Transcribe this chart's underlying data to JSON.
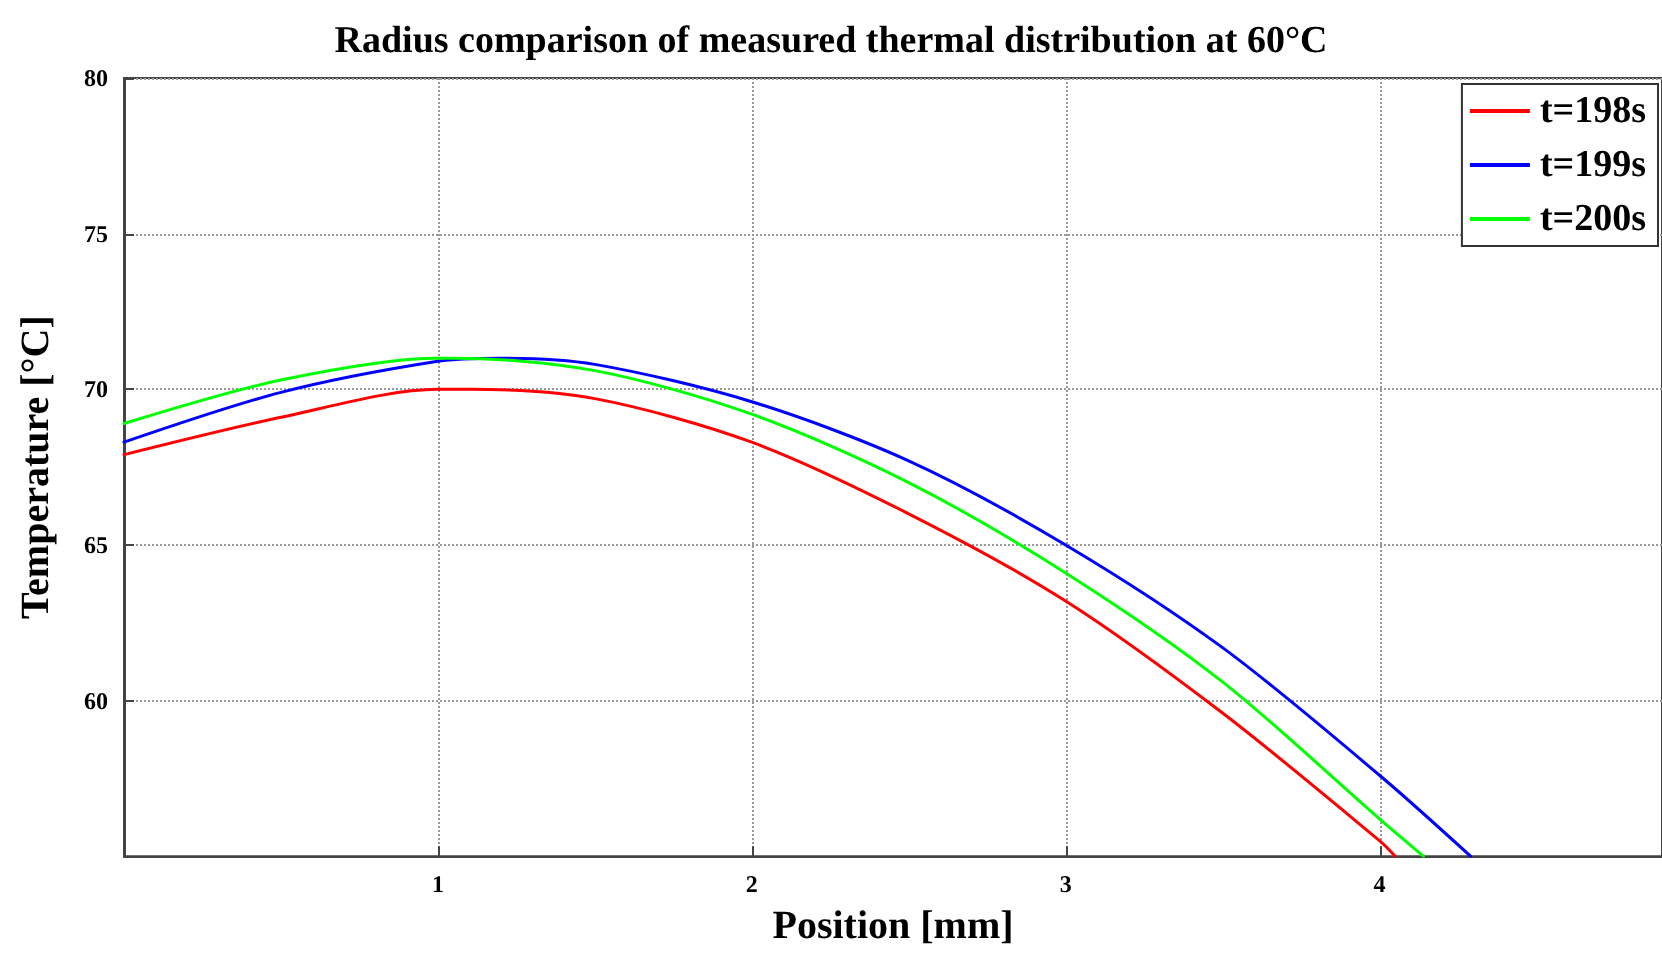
{
  "chart_data": {
    "type": "line",
    "title": "Radius comparison of measured thermal distribution at 60°C",
    "xlabel": "Position [mm]",
    "ylabel": "Temperature [°C]",
    "xlim": [
      0,
      4.9
    ],
    "xticks": [
      1,
      2,
      3,
      4
    ],
    "ylim": [
      55,
      80
    ],
    "yticks": [
      60,
      65,
      70,
      75,
      80
    ],
    "grid": true,
    "legend": "top right",
    "marker": "none",
    "line_style": "solid",
    "series": [
      {
        "name": "t=198s",
        "color": "#ff0000",
        "x": [
          0,
          0.5,
          1,
          1.1,
          1.5,
          2,
          2.5,
          3,
          3.5,
          4,
          4.05
        ],
        "values": [
          67.9,
          69.1,
          70.0,
          70.0,
          69.7,
          68.3,
          66.0,
          63.2,
          59.6,
          55.5,
          55
        ]
      },
      {
        "name": "t=199s",
        "color": "#0000ff",
        "x": [
          0,
          0.5,
          1,
          1.2,
          1.5,
          2,
          2.5,
          3,
          3.5,
          4,
          4.29
        ],
        "values": [
          68.3,
          69.9,
          70.9,
          71.0,
          70.8,
          69.6,
          67.7,
          65.0,
          61.7,
          57.6,
          55
        ]
      },
      {
        "name": "t=200s",
        "color": "#00ff00",
        "x": [
          0,
          0.5,
          1,
          1.05,
          1.5,
          2,
          2.5,
          3,
          3.5,
          4,
          4.14
        ],
        "values": [
          68.9,
          70.3,
          71.0,
          71.0,
          70.6,
          69.2,
          67.0,
          64.1,
          60.6,
          56.2,
          55
        ]
      }
    ]
  }
}
